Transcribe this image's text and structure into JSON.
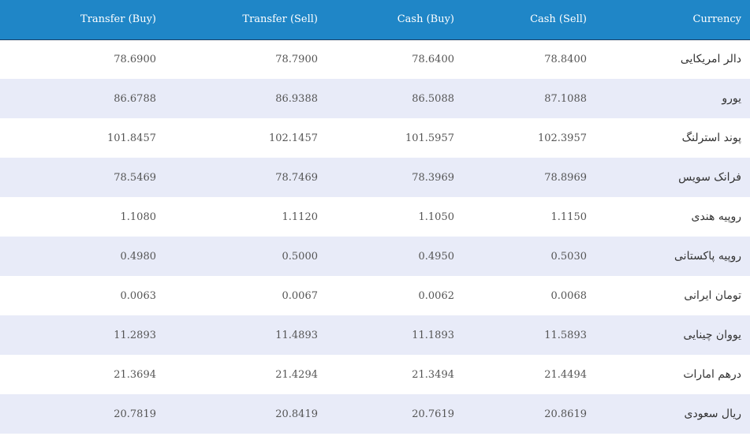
{
  "table": {
    "headers": {
      "transfer_buy": "Transfer (Buy)",
      "transfer_sell": "Transfer (Sell)",
      "cash_buy": "Cash (Buy)",
      "cash_sell": "Cash (Sell)",
      "currency": "Currency"
    },
    "rows": [
      {
        "currency": "دالر امریکایی",
        "transfer_buy": "78.6900",
        "transfer_sell": "78.7900",
        "cash_buy": "78.6400",
        "cash_sell": "78.8400"
      },
      {
        "currency": "یورو",
        "transfer_buy": "86.6788",
        "transfer_sell": "86.9388",
        "cash_buy": "86.5088",
        "cash_sell": "87.1088"
      },
      {
        "currency": "پوند استرلنگ",
        "transfer_buy": "101.8457",
        "transfer_sell": "102.1457",
        "cash_buy": "101.5957",
        "cash_sell": "102.3957"
      },
      {
        "currency": "فرانک سویس",
        "transfer_buy": "78.5469",
        "transfer_sell": "78.7469",
        "cash_buy": "78.3969",
        "cash_sell": "78.8969"
      },
      {
        "currency": "روپیه هندی",
        "transfer_buy": "1.1080",
        "transfer_sell": "1.1120",
        "cash_buy": "1.1050",
        "cash_sell": "1.1150"
      },
      {
        "currency": "روپیه پاکستانی",
        "transfer_buy": "0.4980",
        "transfer_sell": "0.5000",
        "cash_buy": "0.4950",
        "cash_sell": "0.5030"
      },
      {
        "currency": "تومان ایرانی",
        "transfer_buy": "0.0063",
        "transfer_sell": "0.0067",
        "cash_buy": "0.0062",
        "cash_sell": "0.0068"
      },
      {
        "currency": "یووان چینایی",
        "transfer_buy": "11.2893",
        "transfer_sell": "11.4893",
        "cash_buy": "11.1893",
        "cash_sell": "11.5893"
      },
      {
        "currency": "درهم امارات",
        "transfer_buy": "21.3694",
        "transfer_sell": "21.4294",
        "cash_buy": "21.3494",
        "cash_sell": "21.4494"
      },
      {
        "currency": "ریال سعودی",
        "transfer_buy": "20.7819",
        "transfer_sell": "20.8419",
        "cash_buy": "20.7619",
        "cash_sell": "20.8619"
      }
    ]
  },
  "colors": {
    "header_bg": "#1f86c7",
    "row_alt_bg": "#e8ebf8"
  }
}
